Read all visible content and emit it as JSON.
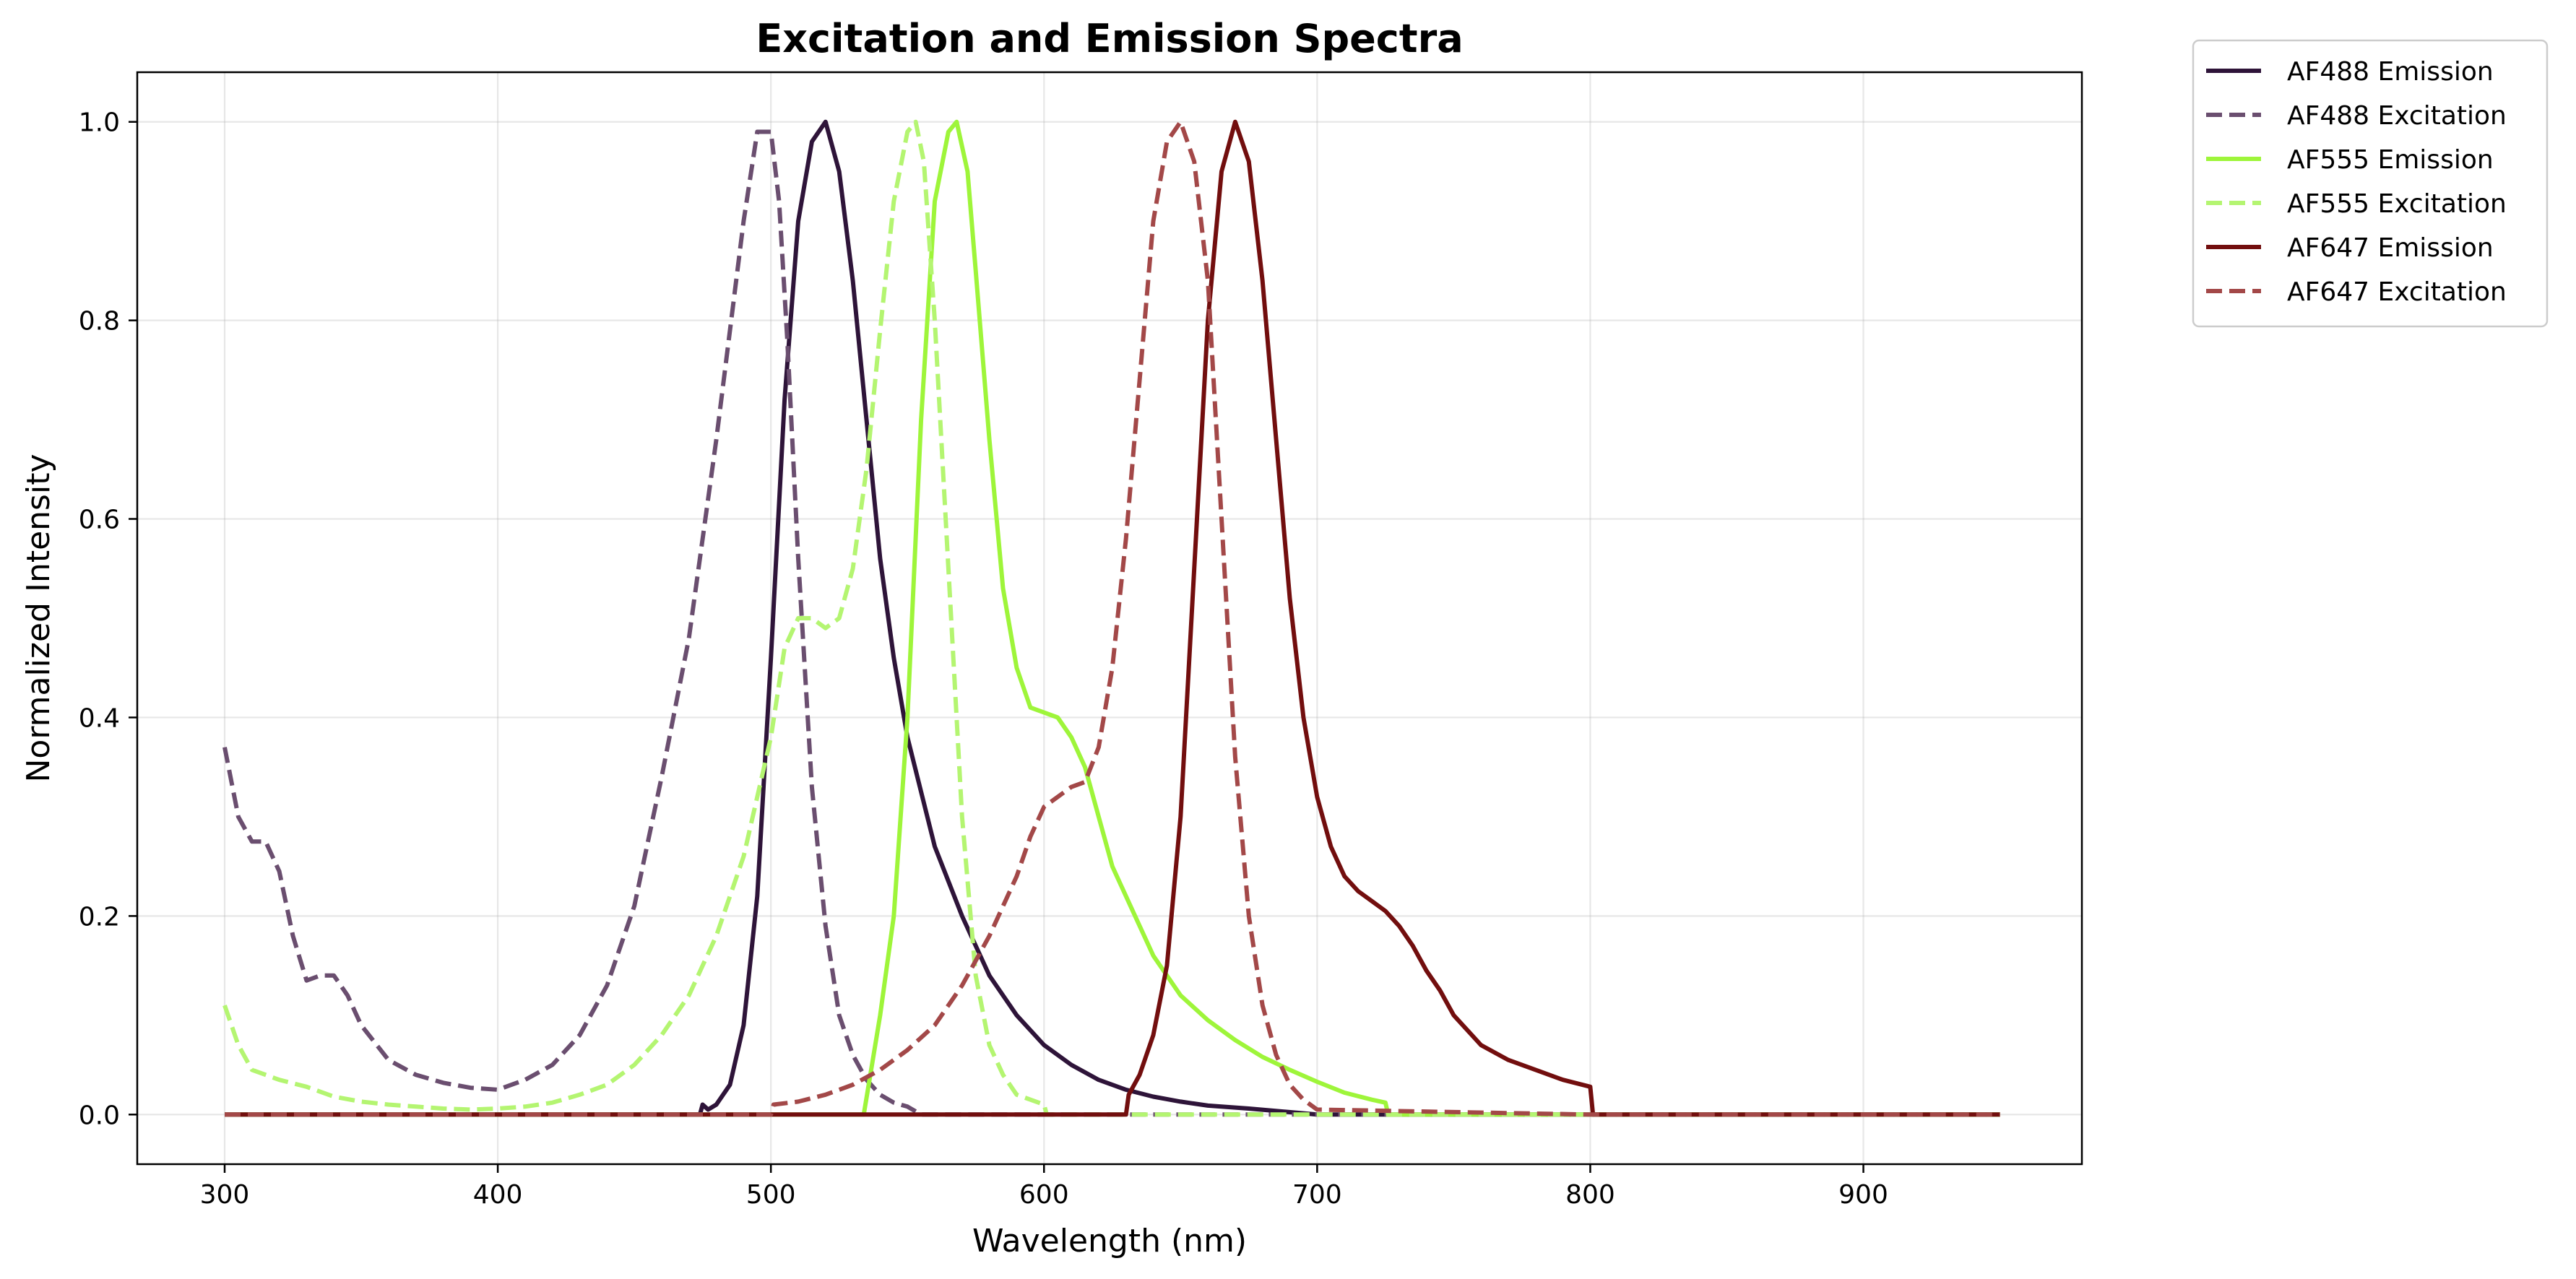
{
  "chart_data": {
    "type": "line",
    "title": "Excitation and Emission Spectra",
    "xlabel": "Wavelength (nm)",
    "ylabel": "Normalized Intensity",
    "xlim": [
      268,
      980
    ],
    "ylim": [
      -0.05,
      1.05
    ],
    "xticks": [
      300,
      400,
      500,
      600,
      700,
      800,
      900
    ],
    "yticks": [
      0.0,
      0.2,
      0.4,
      0.6,
      0.8,
      1.0
    ],
    "grid": true,
    "legend_position": "outside-top-right",
    "series": [
      {
        "name": "AF488 Emission",
        "color": "#2e1439",
        "dash": "solid",
        "x": [
          300,
          474,
          475,
          477,
          480,
          485,
          490,
          495,
          500,
          505,
          510,
          515,
          520,
          525,
          530,
          535,
          540,
          545,
          550,
          560,
          570,
          580,
          590,
          600,
          610,
          620,
          630,
          640,
          650,
          660,
          675,
          700,
          800,
          950
        ],
        "y": [
          0,
          0,
          0.01,
          0.005,
          0.01,
          0.03,
          0.09,
          0.22,
          0.46,
          0.72,
          0.9,
          0.98,
          1.0,
          0.95,
          0.84,
          0.7,
          0.56,
          0.46,
          0.38,
          0.27,
          0.2,
          0.14,
          0.1,
          0.07,
          0.05,
          0.035,
          0.025,
          0.018,
          0.013,
          0.009,
          0.006,
          0,
          0,
          0
        ]
      },
      {
        "name": "AF488 Excitation",
        "color": "#6a4e6f",
        "dash": "dashed",
        "x": [
          300,
          305,
          310,
          315,
          320,
          325,
          330,
          335,
          340,
          345,
          350,
          360,
          370,
          380,
          390,
          400,
          410,
          420,
          430,
          440,
          450,
          460,
          470,
          480,
          490,
          495,
          500,
          503,
          506,
          510,
          515,
          520,
          525,
          530,
          535,
          540,
          545,
          550,
          555,
          600,
          700,
          800,
          950
        ],
        "y": [
          0.37,
          0.3,
          0.275,
          0.275,
          0.245,
          0.18,
          0.135,
          0.14,
          0.14,
          0.12,
          0.09,
          0.055,
          0.04,
          0.032,
          0.027,
          0.025,
          0.035,
          0.05,
          0.08,
          0.13,
          0.21,
          0.34,
          0.48,
          0.68,
          0.9,
          0.99,
          0.99,
          0.92,
          0.78,
          0.56,
          0.33,
          0.19,
          0.1,
          0.06,
          0.035,
          0.02,
          0.012,
          0.008,
          0,
          0,
          0,
          0,
          0
        ]
      },
      {
        "name": "AF555 Emission",
        "color": "#9ef53a",
        "dash": "solid",
        "x": [
          300,
          534,
          537,
          540,
          545,
          550,
          555,
          560,
          565,
          568,
          572,
          575,
          580,
          585,
          590,
          595,
          600,
          605,
          610,
          615,
          620,
          625,
          630,
          640,
          650,
          660,
          670,
          680,
          690,
          700,
          710,
          720,
          725,
          726,
          800,
          950
        ],
        "y": [
          0,
          0,
          0.05,
          0.1,
          0.2,
          0.4,
          0.7,
          0.92,
          0.99,
          1.0,
          0.95,
          0.85,
          0.68,
          0.53,
          0.45,
          0.41,
          0.405,
          0.4,
          0.38,
          0.35,
          0.3,
          0.25,
          0.22,
          0.16,
          0.12,
          0.095,
          0.075,
          0.058,
          0.045,
          0.033,
          0.022,
          0.015,
          0.012,
          0,
          0,
          0
        ]
      },
      {
        "name": "AF555 Excitation",
        "color": "#b4f571",
        "dash": "dashed",
        "x": [
          300,
          305,
          310,
          320,
          330,
          340,
          350,
          360,
          370,
          380,
          390,
          400,
          410,
          420,
          430,
          440,
          450,
          460,
          470,
          480,
          490,
          500,
          505,
          510,
          515,
          520,
          525,
          530,
          535,
          540,
          545,
          550,
          553,
          556,
          560,
          565,
          570,
          575,
          580,
          585,
          590,
          600,
          601,
          700,
          800,
          950
        ],
        "y": [
          0.11,
          0.07,
          0.045,
          0.035,
          0.028,
          0.018,
          0.013,
          0.01,
          0.008,
          0.006,
          0.005,
          0.006,
          0.008,
          0.012,
          0.02,
          0.03,
          0.05,
          0.08,
          0.12,
          0.18,
          0.26,
          0.38,
          0.47,
          0.5,
          0.5,
          0.49,
          0.5,
          0.55,
          0.65,
          0.79,
          0.92,
          0.99,
          1.0,
          0.96,
          0.8,
          0.55,
          0.3,
          0.14,
          0.07,
          0.04,
          0.02,
          0.01,
          0,
          0,
          0,
          0
        ]
      },
      {
        "name": "AF647 Emission",
        "color": "#720e0e",
        "dash": "solid",
        "x": [
          300,
          630,
          631,
          635,
          640,
          645,
          650,
          655,
          660,
          665,
          670,
          675,
          680,
          685,
          690,
          695,
          700,
          705,
          710,
          715,
          720,
          725,
          730,
          735,
          740,
          745,
          750,
          760,
          770,
          780,
          790,
          800,
          801,
          950
        ],
        "y": [
          0,
          0,
          0.02,
          0.04,
          0.08,
          0.15,
          0.3,
          0.55,
          0.8,
          0.95,
          1.0,
          0.96,
          0.84,
          0.68,
          0.52,
          0.4,
          0.32,
          0.27,
          0.24,
          0.225,
          0.215,
          0.205,
          0.19,
          0.17,
          0.145,
          0.125,
          0.1,
          0.07,
          0.055,
          0.045,
          0.035,
          0.028,
          0,
          0
        ]
      },
      {
        "name": "AF647 Excitation",
        "color": "#a34848",
        "dash": "dashed",
        "x": [
          300,
          500,
          501,
          510,
          520,
          530,
          540,
          550,
          560,
          570,
          580,
          590,
          595,
          600,
          605,
          610,
          615,
          620,
          625,
          630,
          635,
          640,
          645,
          650,
          655,
          660,
          665,
          670,
          675,
          680,
          685,
          690,
          695,
          700,
          800,
          950
        ],
        "y": [
          0,
          0,
          0.01,
          0.013,
          0.02,
          0.03,
          0.045,
          0.065,
          0.09,
          0.13,
          0.18,
          0.24,
          0.28,
          0.31,
          0.32,
          0.33,
          0.335,
          0.37,
          0.45,
          0.58,
          0.74,
          0.9,
          0.98,
          1.0,
          0.96,
          0.84,
          0.6,
          0.36,
          0.2,
          0.11,
          0.06,
          0.03,
          0.015,
          0.005,
          0,
          0
        ]
      }
    ]
  }
}
